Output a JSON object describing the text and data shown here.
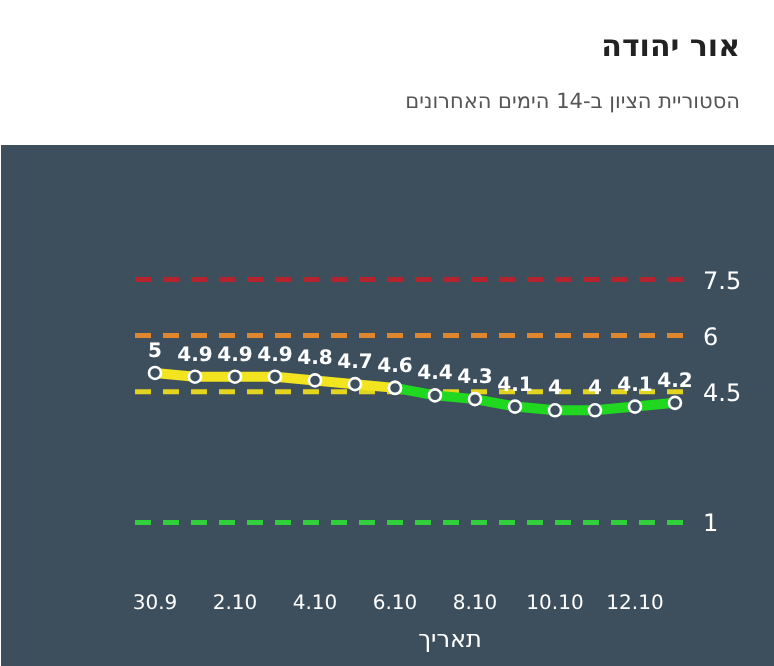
{
  "chart_data": {
    "type": "line",
    "title": "אור יהודה",
    "subtitle": "הסטוריית הציון ב-14 הימים האחרונים",
    "xlabel": "תאריך",
    "categories": [
      "30.9",
      null,
      "2.10",
      null,
      "4.10",
      null,
      "6.10",
      null,
      "8.10",
      null,
      "10.10",
      null,
      "12.10",
      null
    ],
    "series": [
      {
        "color": "#f2e51f",
        "values": [
          5,
          4.9,
          4.9,
          4.9,
          4.8,
          4.7,
          4.6,
          null,
          null,
          null,
          null,
          null,
          null,
          null
        ],
        "value_labels": [
          "5",
          "4.9",
          "4.9",
          "4.9",
          "4.8",
          "4.7",
          "4.6",
          null,
          null,
          null,
          null,
          null,
          null,
          null
        ]
      },
      {
        "color": "#1fd81f",
        "values": [
          null,
          null,
          null,
          null,
          null,
          null,
          4.6,
          4.4,
          4.3,
          4.1,
          4,
          4,
          4.1,
          4.2
        ],
        "value_labels": [
          null,
          null,
          null,
          null,
          null,
          null,
          null,
          "4.4",
          "4.3",
          "4.1",
          "4",
          "4",
          "4.1",
          "4.2"
        ]
      }
    ],
    "ylim": [
      -0.3,
      11.1
    ],
    "tick_labels": "x",
    "marker": "circle",
    "grid": false,
    "ref_lines": [
      {
        "axis": "y",
        "value": 7.5,
        "label": "7.5",
        "color": "#b5232e",
        "line_style": "dashed"
      },
      {
        "axis": "y",
        "value": 6,
        "label": "6",
        "color": "#e0862f",
        "line_style": "dashed"
      },
      {
        "axis": "y",
        "value": 4.5,
        "label": "4.5",
        "color": "#e3d51f",
        "line_style": "dashed"
      },
      {
        "axis": "y",
        "value": 1,
        "label": "1",
        "color": "#2fd03a",
        "line_style": "dashed"
      }
    ]
  }
}
